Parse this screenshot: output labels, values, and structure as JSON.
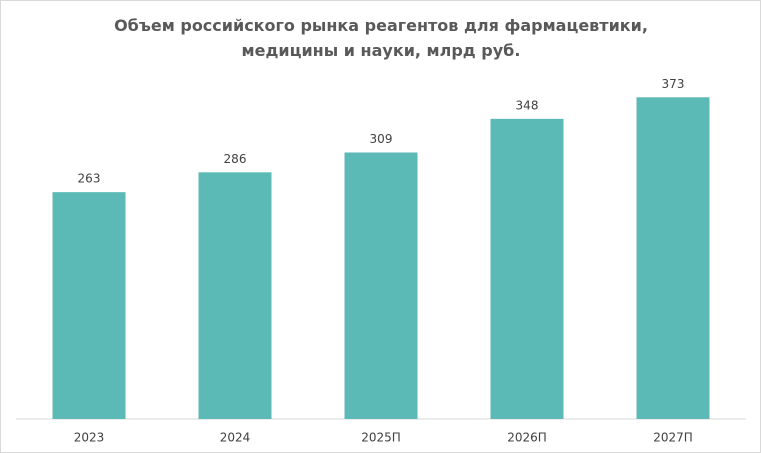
{
  "chart_data": {
    "type": "bar",
    "title": "Объем российского рынка реагентов для фармацевтики, медицины и науки, млрд руб.",
    "categories": [
      "2023",
      "2024",
      "2025П",
      "2026П",
      "2027П"
    ],
    "values": [
      263,
      286,
      309,
      348,
      373
    ],
    "color": "#5bbab5",
    "ylim": [
      0,
      400
    ]
  }
}
